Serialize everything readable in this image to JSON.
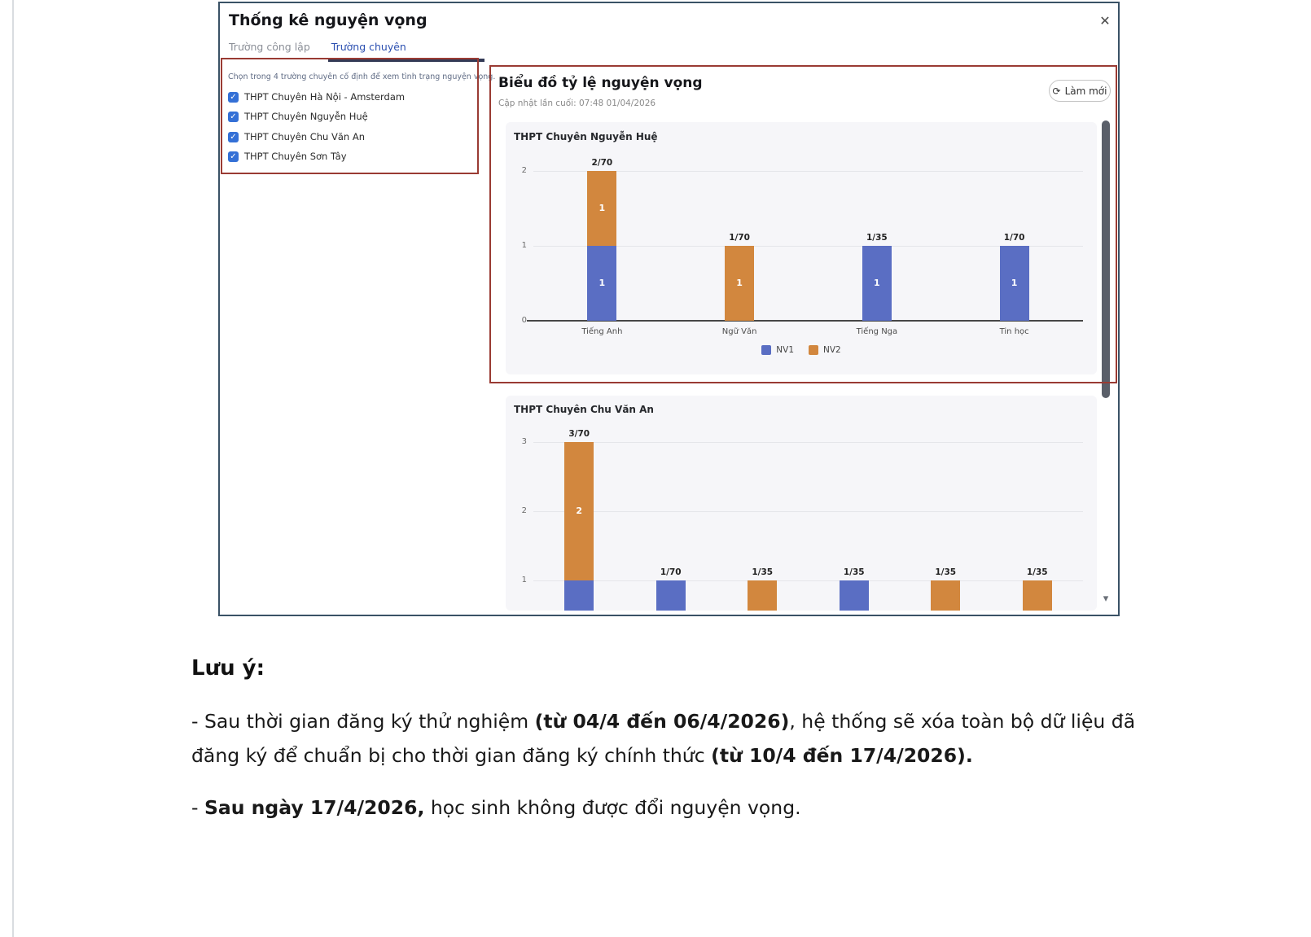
{
  "icons": {
    "close": "✕",
    "refresh": "⟳",
    "check": "✓",
    "scroll_down": "▾"
  },
  "colors": {
    "nv1": "#5A6EC3",
    "nv2": "#D2873E",
    "annotation_red": "#9A3B33",
    "modal_border": "#3A5266",
    "tab_active": "#2B4FB0",
    "card_bg": "#F6F6F9"
  },
  "modal": {
    "title": "Thống kê nguyện vọng",
    "tabs": [
      {
        "label": "Trường công lập",
        "active": false
      },
      {
        "label": "Trường chuyên",
        "active": true
      }
    ],
    "filter": {
      "hint": "Chọn trong 4 trường chuyên cố định để xem tình trạng nguyện vọng.",
      "options": [
        {
          "label": "THPT Chuyên Hà Nội - Amsterdam",
          "checked": true
        },
        {
          "label": "THPT Chuyên Nguyễn Huệ",
          "checked": true
        },
        {
          "label": "THPT Chuyên Chu Văn An",
          "checked": true
        },
        {
          "label": "THPT Chuyên Sơn Tây",
          "checked": true
        }
      ]
    },
    "chart_section": {
      "title": "Biểu đồ tỷ lệ nguyện vọng",
      "last_updated": "Cập nhật lần cuối: 07:48 01/04/2026",
      "refresh_label": "Làm mới"
    }
  },
  "chart_data": [
    {
      "type": "bar",
      "stacked": true,
      "title": "THPT Chuyên Nguyễn Huệ",
      "categories": [
        "Tiếng Anh",
        "Ngữ Văn",
        "Tiếng Nga",
        "Tin học"
      ],
      "series": [
        {
          "name": "NV1",
          "color_key": "nv1",
          "values": [
            1,
            0,
            1,
            1
          ]
        },
        {
          "name": "NV2",
          "color_key": "nv2",
          "values": [
            1,
            1,
            0,
            0
          ]
        }
      ],
      "totals_labels": [
        "2/70",
        "1/70",
        "1/35",
        "1/70"
      ],
      "yticks": [
        0,
        1,
        2
      ],
      "ylim": [
        0,
        2.2
      ],
      "grid": true,
      "legend_position": "bottom",
      "legend": [
        "NV1",
        "NV2"
      ],
      "xlabel": "",
      "ylabel": ""
    },
    {
      "type": "bar",
      "stacked": true,
      "title": "THPT Chuyên Chu Văn An",
      "categories": [],
      "series": [
        {
          "name": "NV1",
          "color_key": "nv1",
          "values": [
            1,
            1,
            0,
            1,
            0,
            0
          ]
        },
        {
          "name": "NV2",
          "color_key": "nv2",
          "values": [
            2,
            0,
            1,
            0,
            1,
            1
          ]
        }
      ],
      "totals_labels": [
        "3/70",
        "1/70",
        "1/35",
        "1/35",
        "1/35",
        "1/35"
      ],
      "yticks": [
        1,
        2,
        3
      ],
      "ylim": [
        0,
        3.2
      ],
      "grid": true,
      "legend_position": "none",
      "legend": [
        "NV1",
        "NV2"
      ],
      "xlabel": "",
      "ylabel": "",
      "note": "bottom of chart clipped by modal edge"
    }
  ],
  "notes": {
    "heading": "Lưu ý:",
    "paragraphs": [
      [
        {
          "text": "- Sau thời gian đăng ký thử nghiệm ",
          "bold": false
        },
        {
          "text": "(từ 04/4 đến 06/4/2026)",
          "bold": true
        },
        {
          "text": ", hệ thống sẽ xóa toàn bộ dữ liệu đã đăng ký để chuẩn bị cho thời gian đăng ký chính thức ",
          "bold": false
        },
        {
          "text": "(từ 10/4 đến 17/4/2026).",
          "bold": true
        }
      ],
      [
        {
          "text": "- ",
          "bold": false
        },
        {
          "text": "Sau ngày 17/4/2026,",
          "bold": true
        },
        {
          "text": " học sinh không được đổi nguyện vọng.",
          "bold": false
        }
      ]
    ]
  }
}
